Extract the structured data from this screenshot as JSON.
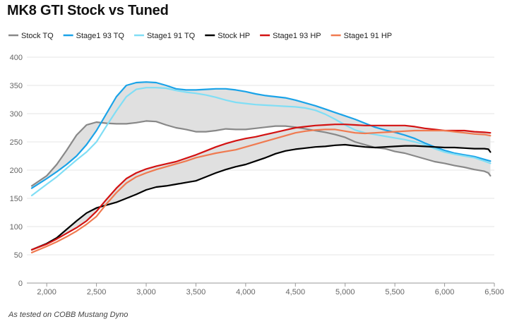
{
  "chart_data": {
    "type": "line",
    "title": "MK8 GTI Stock vs Tuned",
    "xlabel": "",
    "ylabel": "",
    "xlim": [
      1800,
      6500
    ],
    "ylim": [
      0,
      400
    ],
    "x_ticks": [
      "2,000",
      "2,500",
      "3,000",
      "3,500",
      "4,000",
      "4,500",
      "5,000",
      "5,500",
      "6,000",
      "6,500"
    ],
    "x_tick_values": [
      2000,
      2500,
      3000,
      3500,
      4000,
      4500,
      5000,
      5500,
      6000,
      6500
    ],
    "y_ticks": [
      "0",
      "50",
      "100",
      "150",
      "200",
      "250",
      "300",
      "350",
      "400"
    ],
    "y_tick_values": [
      0,
      50,
      100,
      150,
      200,
      250,
      300,
      350,
      400
    ],
    "grid": "horizontal",
    "legend_position": "top",
    "shaded_bands": [
      {
        "between": [
          "Stock TQ",
          "Stage1 93 TQ"
        ],
        "color": "#e0e0e0"
      },
      {
        "between": [
          "Stock HP",
          "Stage1 93 HP"
        ],
        "color": "#e0e0e0"
      }
    ],
    "series": [
      {
        "name": "Stock TQ",
        "color": "#888888",
        "points": [
          [
            1850,
            172
          ],
          [
            2000,
            190
          ],
          [
            2100,
            210
          ],
          [
            2200,
            235
          ],
          [
            2300,
            262
          ],
          [
            2400,
            280
          ],
          [
            2500,
            285
          ],
          [
            2600,
            283
          ],
          [
            2700,
            282
          ],
          [
            2800,
            282
          ],
          [
            2900,
            284
          ],
          [
            3000,
            287
          ],
          [
            3100,
            286
          ],
          [
            3200,
            280
          ],
          [
            3300,
            275
          ],
          [
            3400,
            272
          ],
          [
            3500,
            268
          ],
          [
            3600,
            268
          ],
          [
            3700,
            270
          ],
          [
            3800,
            273
          ],
          [
            3900,
            272
          ],
          [
            4000,
            272
          ],
          [
            4100,
            274
          ],
          [
            4200,
            276
          ],
          [
            4300,
            278
          ],
          [
            4400,
            278
          ],
          [
            4500,
            276
          ],
          [
            4600,
            273
          ],
          [
            4700,
            270
          ],
          [
            4800,
            267
          ],
          [
            4900,
            263
          ],
          [
            5000,
            258
          ],
          [
            5100,
            250
          ],
          [
            5200,
            245
          ],
          [
            5300,
            240
          ],
          [
            5400,
            238
          ],
          [
            5500,
            233
          ],
          [
            5600,
            230
          ],
          [
            5700,
            225
          ],
          [
            5800,
            220
          ],
          [
            5900,
            215
          ],
          [
            6000,
            212
          ],
          [
            6100,
            208
          ],
          [
            6200,
            205
          ],
          [
            6300,
            201
          ],
          [
            6400,
            198
          ],
          [
            6440,
            195
          ],
          [
            6460,
            190
          ]
        ]
      },
      {
        "name": "Stage1 93 TQ",
        "color": "#1aa3e8",
        "points": [
          [
            1850,
            168
          ],
          [
            2000,
            185
          ],
          [
            2100,
            197
          ],
          [
            2200,
            210
          ],
          [
            2300,
            225
          ],
          [
            2400,
            245
          ],
          [
            2500,
            270
          ],
          [
            2600,
            300
          ],
          [
            2700,
            330
          ],
          [
            2800,
            350
          ],
          [
            2900,
            355
          ],
          [
            3000,
            356
          ],
          [
            3100,
            355
          ],
          [
            3200,
            350
          ],
          [
            3300,
            344
          ],
          [
            3400,
            342
          ],
          [
            3500,
            342
          ],
          [
            3600,
            343
          ],
          [
            3700,
            344
          ],
          [
            3800,
            344
          ],
          [
            3900,
            342
          ],
          [
            4000,
            339
          ],
          [
            4100,
            335
          ],
          [
            4200,
            332
          ],
          [
            4300,
            330
          ],
          [
            4400,
            328
          ],
          [
            4500,
            324
          ],
          [
            4600,
            319
          ],
          [
            4700,
            314
          ],
          [
            4800,
            308
          ],
          [
            4900,
            302
          ],
          [
            5000,
            296
          ],
          [
            5100,
            290
          ],
          [
            5200,
            283
          ],
          [
            5300,
            276
          ],
          [
            5400,
            271
          ],
          [
            5500,
            267
          ],
          [
            5600,
            262
          ],
          [
            5700,
            256
          ],
          [
            5800,
            248
          ],
          [
            5900,
            241
          ],
          [
            6000,
            235
          ],
          [
            6100,
            230
          ],
          [
            6200,
            227
          ],
          [
            6300,
            224
          ],
          [
            6400,
            219
          ],
          [
            6460,
            216
          ]
        ]
      },
      {
        "name": "Stage1 91 TQ",
        "color": "#80def5",
        "points": [
          [
            1850,
            155
          ],
          [
            2000,
            175
          ],
          [
            2100,
            188
          ],
          [
            2200,
            203
          ],
          [
            2300,
            218
          ],
          [
            2400,
            232
          ],
          [
            2500,
            250
          ],
          [
            2600,
            278
          ],
          [
            2700,
            305
          ],
          [
            2800,
            330
          ],
          [
            2900,
            343
          ],
          [
            3000,
            346
          ],
          [
            3100,
            346
          ],
          [
            3200,
            345
          ],
          [
            3300,
            341
          ],
          [
            3400,
            338
          ],
          [
            3500,
            336
          ],
          [
            3600,
            333
          ],
          [
            3700,
            329
          ],
          [
            3800,
            324
          ],
          [
            3900,
            320
          ],
          [
            4000,
            318
          ],
          [
            4100,
            316
          ],
          [
            4200,
            315
          ],
          [
            4300,
            314
          ],
          [
            4400,
            313
          ],
          [
            4500,
            312
          ],
          [
            4600,
            310
          ],
          [
            4700,
            306
          ],
          [
            4800,
            299
          ],
          [
            4900,
            290
          ],
          [
            5000,
            280
          ],
          [
            5100,
            271
          ],
          [
            5200,
            266
          ],
          [
            5300,
            263
          ],
          [
            5400,
            260
          ],
          [
            5500,
            257
          ],
          [
            5600,
            254
          ],
          [
            5700,
            250
          ],
          [
            5800,
            245
          ],
          [
            5900,
            238
          ],
          [
            6000,
            232
          ],
          [
            6100,
            228
          ],
          [
            6200,
            225
          ],
          [
            6300,
            222
          ],
          [
            6400,
            216
          ],
          [
            6460,
            212
          ]
        ]
      },
      {
        "name": "Stock HP",
        "color": "#000000",
        "points": [
          [
            1850,
            59
          ],
          [
            2000,
            70
          ],
          [
            2100,
            80
          ],
          [
            2200,
            95
          ],
          [
            2300,
            110
          ],
          [
            2400,
            124
          ],
          [
            2500,
            133
          ],
          [
            2600,
            138
          ],
          [
            2700,
            143
          ],
          [
            2800,
            150
          ],
          [
            2900,
            157
          ],
          [
            3000,
            165
          ],
          [
            3100,
            170
          ],
          [
            3200,
            172
          ],
          [
            3300,
            175
          ],
          [
            3400,
            178
          ],
          [
            3500,
            181
          ],
          [
            3600,
            188
          ],
          [
            3700,
            195
          ],
          [
            3800,
            201
          ],
          [
            3900,
            206
          ],
          [
            4000,
            210
          ],
          [
            4100,
            216
          ],
          [
            4200,
            222
          ],
          [
            4300,
            229
          ],
          [
            4400,
            234
          ],
          [
            4500,
            237
          ],
          [
            4600,
            239
          ],
          [
            4700,
            241
          ],
          [
            4800,
            242
          ],
          [
            4900,
            244
          ],
          [
            5000,
            245
          ],
          [
            5100,
            243
          ],
          [
            5200,
            241
          ],
          [
            5300,
            240
          ],
          [
            5400,
            241
          ],
          [
            5500,
            242
          ],
          [
            5600,
            243
          ],
          [
            5700,
            243
          ],
          [
            5800,
            242
          ],
          [
            5900,
            241
          ],
          [
            6000,
            240
          ],
          [
            6100,
            240
          ],
          [
            6200,
            239
          ],
          [
            6300,
            238
          ],
          [
            6400,
            238
          ],
          [
            6440,
            237
          ],
          [
            6460,
            232
          ]
        ]
      },
      {
        "name": "Stage1 93 HP",
        "color": "#d31212",
        "points": [
          [
            1850,
            59
          ],
          [
            2000,
            69
          ],
          [
            2100,
            78
          ],
          [
            2200,
            88
          ],
          [
            2300,
            98
          ],
          [
            2400,
            110
          ],
          [
            2500,
            127
          ],
          [
            2600,
            148
          ],
          [
            2700,
            168
          ],
          [
            2800,
            185
          ],
          [
            2900,
            195
          ],
          [
            3000,
            202
          ],
          [
            3100,
            207
          ],
          [
            3200,
            211
          ],
          [
            3300,
            215
          ],
          [
            3400,
            221
          ],
          [
            3500,
            227
          ],
          [
            3600,
            234
          ],
          [
            3700,
            241
          ],
          [
            3800,
            247
          ],
          [
            3900,
            252
          ],
          [
            4000,
            256
          ],
          [
            4100,
            259
          ],
          [
            4200,
            263
          ],
          [
            4300,
            267
          ],
          [
            4400,
            271
          ],
          [
            4500,
            275
          ],
          [
            4600,
            277
          ],
          [
            4700,
            279
          ],
          [
            4800,
            280
          ],
          [
            4900,
            281
          ],
          [
            5000,
            281
          ],
          [
            5100,
            280
          ],
          [
            5200,
            279
          ],
          [
            5300,
            279
          ],
          [
            5400,
            279
          ],
          [
            5500,
            279
          ],
          [
            5600,
            279
          ],
          [
            5700,
            277
          ],
          [
            5800,
            274
          ],
          [
            5900,
            272
          ],
          [
            6000,
            270
          ],
          [
            6100,
            270
          ],
          [
            6200,
            270
          ],
          [
            6300,
            268
          ],
          [
            6400,
            267
          ],
          [
            6460,
            266
          ]
        ]
      },
      {
        "name": "Stage1 91 HP",
        "color": "#f07a50",
        "points": [
          [
            1850,
            54
          ],
          [
            2000,
            65
          ],
          [
            2100,
            73
          ],
          [
            2200,
            82
          ],
          [
            2300,
            92
          ],
          [
            2400,
            104
          ],
          [
            2500,
            118
          ],
          [
            2600,
            140
          ],
          [
            2700,
            160
          ],
          [
            2800,
            177
          ],
          [
            2900,
            188
          ],
          [
            3000,
            195
          ],
          [
            3100,
            201
          ],
          [
            3200,
            206
          ],
          [
            3300,
            211
          ],
          [
            3400,
            216
          ],
          [
            3500,
            222
          ],
          [
            3600,
            226
          ],
          [
            3700,
            230
          ],
          [
            3800,
            233
          ],
          [
            3900,
            236
          ],
          [
            4000,
            241
          ],
          [
            4100,
            246
          ],
          [
            4200,
            251
          ],
          [
            4300,
            256
          ],
          [
            4400,
            261
          ],
          [
            4500,
            266
          ],
          [
            4600,
            269
          ],
          [
            4700,
            271
          ],
          [
            4800,
            272
          ],
          [
            4900,
            272
          ],
          [
            5000,
            269
          ],
          [
            5100,
            266
          ],
          [
            5200,
            265
          ],
          [
            5300,
            266
          ],
          [
            5400,
            267
          ],
          [
            5500,
            268
          ],
          [
            5600,
            269
          ],
          [
            5700,
            270
          ],
          [
            5800,
            270
          ],
          [
            5900,
            270
          ],
          [
            6000,
            270
          ],
          [
            6100,
            268
          ],
          [
            6200,
            266
          ],
          [
            6300,
            264
          ],
          [
            6400,
            263
          ],
          [
            6460,
            261
          ]
        ]
      }
    ]
  },
  "footnote": "As tested on COBB Mustang Dyno"
}
